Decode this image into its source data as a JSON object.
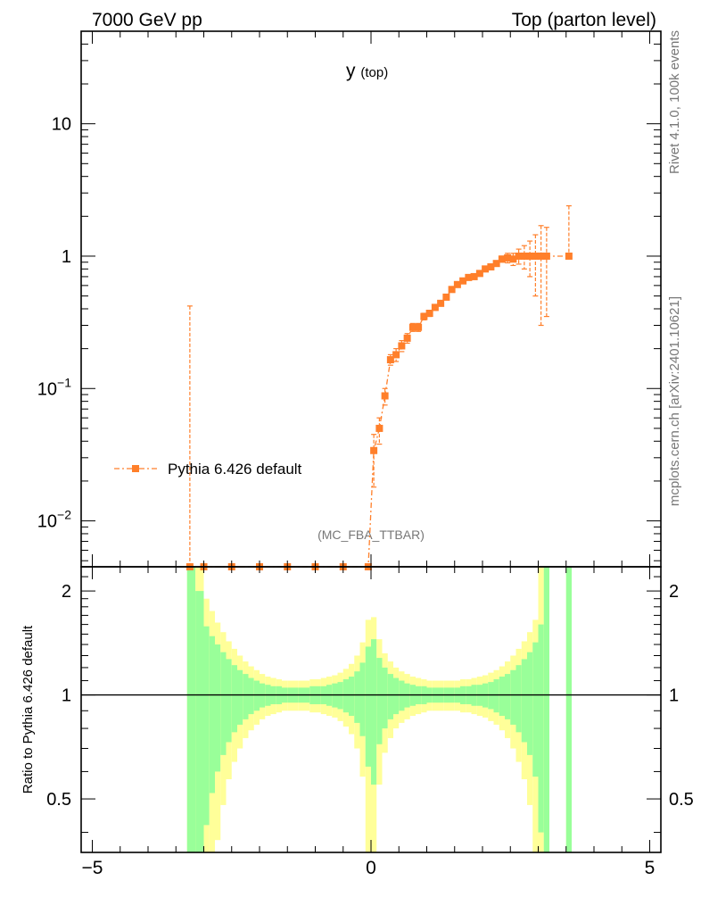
{
  "chart_data": {
    "type": "line",
    "header_left": "7000 GeV pp",
    "header_right": "Top (parton level)",
    "title_main": "y",
    "title_sub": "(top)",
    "side_label_top": "Rivet 4.1.0,  100k events",
    "side_label_bottom": "mcplots.cern.ch [arXiv:2401.10621]",
    "analysis_label": "(MC_FBA_TTBAR)",
    "ratio_ylabel": "Ratio to Pythia 6.426 default",
    "xlim": [
      -5.2,
      5.2
    ],
    "ylim_main": [
      0.0045,
      50
    ],
    "ylim_ratio": [
      0.35,
      2.35
    ],
    "x_ticks": [
      -5,
      0,
      5
    ],
    "x_tick_labels": [
      "−5",
      "0",
      "5"
    ],
    "main_y_ticks": [
      {
        "v": 10,
        "base": "10",
        "exp": ""
      },
      {
        "v": 1,
        "base": "1",
        "exp": ""
      },
      {
        "v": 0.1,
        "base": "10",
        "exp": "−1"
      },
      {
        "v": 0.01,
        "base": "10",
        "exp": "−2"
      }
    ],
    "ratio_y_ticks": [
      {
        "v": 2,
        "label": "2"
      },
      {
        "v": 1,
        "label": "1"
      },
      {
        "v": 0.5,
        "label": "0.5"
      }
    ],
    "series": [
      {
        "name": "Pythia 6.426 default",
        "color": "#ff7f2a",
        "points": [
          {
            "x": -3.25,
            "y": 0.0045,
            "up": 0.42
          },
          {
            "x": -3.0,
            "y": 0.0045
          },
          {
            "x": -2.5,
            "y": 0.0045
          },
          {
            "x": -2.0,
            "y": 0.0045
          },
          {
            "x": -1.5,
            "y": 0.0045
          },
          {
            "x": -1.0,
            "y": 0.0045
          },
          {
            "x": -0.5,
            "y": 0.0045
          },
          {
            "x": -0.05,
            "y": 0.0045
          },
          {
            "x": 0.05,
            "y": 0.034,
            "up": 0.045,
            "dn": 0.018
          },
          {
            "x": 0.15,
            "y": 0.05,
            "up": 0.06,
            "dn": 0.038
          },
          {
            "x": 0.25,
            "y": 0.088,
            "up": 0.1,
            "dn": 0.075
          },
          {
            "x": 0.35,
            "y": 0.165,
            "up": 0.18,
            "dn": 0.15
          },
          {
            "x": 0.45,
            "y": 0.18,
            "up": 0.2,
            "dn": 0.16
          },
          {
            "x": 0.55,
            "y": 0.21,
            "up": 0.23,
            "dn": 0.19
          },
          {
            "x": 0.65,
            "y": 0.24,
            "up": 0.26,
            "dn": 0.22
          },
          {
            "x": 0.75,
            "y": 0.29,
            "up": 0.31,
            "dn": 0.27
          },
          {
            "x": 0.85,
            "y": 0.29,
            "up": 0.31,
            "dn": 0.27
          },
          {
            "x": 0.95,
            "y": 0.35,
            "up": 0.37,
            "dn": 0.33
          },
          {
            "x": 1.05,
            "y": 0.37,
            "up": 0.39,
            "dn": 0.35
          },
          {
            "x": 1.15,
            "y": 0.41,
            "up": 0.43,
            "dn": 0.39
          },
          {
            "x": 1.25,
            "y": 0.44,
            "up": 0.46,
            "dn": 0.42
          },
          {
            "x": 1.35,
            "y": 0.49,
            "up": 0.51,
            "dn": 0.47
          },
          {
            "x": 1.45,
            "y": 0.56,
            "up": 0.58,
            "dn": 0.54
          },
          {
            "x": 1.55,
            "y": 0.61,
            "up": 0.63,
            "dn": 0.59
          },
          {
            "x": 1.65,
            "y": 0.65,
            "up": 0.67,
            "dn": 0.63
          },
          {
            "x": 1.75,
            "y": 0.69,
            "up": 0.71,
            "dn": 0.67
          },
          {
            "x": 1.85,
            "y": 0.7,
            "up": 0.72,
            "dn": 0.68
          },
          {
            "x": 1.95,
            "y": 0.74,
            "up": 0.76,
            "dn": 0.72
          },
          {
            "x": 2.05,
            "y": 0.8,
            "up": 0.83,
            "dn": 0.77
          },
          {
            "x": 2.15,
            "y": 0.83,
            "up": 0.86,
            "dn": 0.8
          },
          {
            "x": 2.25,
            "y": 0.88,
            "up": 0.92,
            "dn": 0.84
          },
          {
            "x": 2.35,
            "y": 0.95,
            "up": 1.0,
            "dn": 0.9
          },
          {
            "x": 2.45,
            "y": 0.97,
            "up": 1.05,
            "dn": 0.89
          },
          {
            "x": 2.55,
            "y": 0.95,
            "up": 1.05,
            "dn": 0.85
          },
          {
            "x": 2.65,
            "y": 1.0,
            "up": 1.13,
            "dn": 0.87
          },
          {
            "x": 2.75,
            "y": 1.0,
            "up": 1.2,
            "dn": 0.8
          },
          {
            "x": 2.85,
            "y": 1.0,
            "up": 1.3,
            "dn": 0.7
          },
          {
            "x": 2.95,
            "y": 1.0,
            "up": 1.45,
            "dn": 0.5
          },
          {
            "x": 3.05,
            "y": 1.0,
            "up": 1.7,
            "dn": 0.3
          },
          {
            "x": 3.15,
            "y": 1.0,
            "up": 1.65,
            "dn": 0.35
          },
          {
            "x": 3.55,
            "y": 1.0,
            "up": 2.4
          }
        ]
      }
    ],
    "ratio_band_bins": [
      {
        "x0": -3.3,
        "x1": -3.15,
        "inner": 1.35,
        "outer": 1.35
      },
      {
        "x0": -3.15,
        "x1": -3.0,
        "inner": 1.0,
        "outer": 1.35
      },
      {
        "x0": -3.0,
        "x1": -2.9,
        "inner": 0.58,
        "outer": 0.9
      },
      {
        "x0": -2.9,
        "x1": -2.8,
        "inner": 0.48,
        "outer": 0.75
      },
      {
        "x0": -2.8,
        "x1": -2.7,
        "inner": 0.4,
        "outer": 0.62
      },
      {
        "x0": -2.7,
        "x1": -2.6,
        "inner": 0.33,
        "outer": 0.52
      },
      {
        "x0": -2.6,
        "x1": -2.5,
        "inner": 0.27,
        "outer": 0.43
      },
      {
        "x0": -2.5,
        "x1": -2.4,
        "inner": 0.22,
        "outer": 0.36
      },
      {
        "x0": -2.4,
        "x1": -2.3,
        "inner": 0.18,
        "outer": 0.3
      },
      {
        "x0": -2.3,
        "x1": -2.2,
        "inner": 0.15,
        "outer": 0.25
      },
      {
        "x0": -2.2,
        "x1": -2.1,
        "inner": 0.12,
        "outer": 0.21
      },
      {
        "x0": -2.1,
        "x1": -2.0,
        "inner": 0.1,
        "outer": 0.18
      },
      {
        "x0": -2.0,
        "x1": -1.9,
        "inner": 0.08,
        "outer": 0.15
      },
      {
        "x0": -1.9,
        "x1": -1.8,
        "inner": 0.07,
        "outer": 0.13
      },
      {
        "x0": -1.8,
        "x1": -1.7,
        "inner": 0.06,
        "outer": 0.12
      },
      {
        "x0": -1.7,
        "x1": -1.6,
        "inner": 0.06,
        "outer": 0.11
      },
      {
        "x0": -1.6,
        "x1": -1.5,
        "inner": 0.05,
        "outer": 0.1
      },
      {
        "x0": -1.5,
        "x1": -1.4,
        "inner": 0.05,
        "outer": 0.1
      },
      {
        "x0": -1.4,
        "x1": -1.3,
        "inner": 0.05,
        "outer": 0.1
      },
      {
        "x0": -1.3,
        "x1": -1.2,
        "inner": 0.05,
        "outer": 0.1
      },
      {
        "x0": -1.2,
        "x1": -1.1,
        "inner": 0.05,
        "outer": 0.1
      },
      {
        "x0": -1.1,
        "x1": -1.0,
        "inner": 0.06,
        "outer": 0.11
      },
      {
        "x0": -1.0,
        "x1": -0.9,
        "inner": 0.06,
        "outer": 0.11
      },
      {
        "x0": -0.9,
        "x1": -0.8,
        "inner": 0.06,
        "outer": 0.12
      },
      {
        "x0": -0.8,
        "x1": -0.7,
        "inner": 0.07,
        "outer": 0.13
      },
      {
        "x0": -0.7,
        "x1": -0.6,
        "inner": 0.08,
        "outer": 0.14
      },
      {
        "x0": -0.6,
        "x1": -0.5,
        "inner": 0.09,
        "outer": 0.16
      },
      {
        "x0": -0.5,
        "x1": -0.4,
        "inner": 0.11,
        "outer": 0.19
      },
      {
        "x0": -0.4,
        "x1": -0.3,
        "inner": 0.13,
        "outer": 0.23
      },
      {
        "x0": -0.3,
        "x1": -0.2,
        "inner": 0.17,
        "outer": 0.3
      },
      {
        "x0": -0.2,
        "x1": -0.1,
        "inner": 0.24,
        "outer": 0.42
      },
      {
        "x0": -0.1,
        "x1": 0.0,
        "inner": 0.38,
        "outer": 0.65
      },
      {
        "x0": 0.0,
        "x1": 0.1,
        "inner": 0.45,
        "outer": 0.68
      },
      {
        "x0": 0.1,
        "x1": 0.2,
        "inner": 0.28,
        "outer": 0.45
      },
      {
        "x0": 0.2,
        "x1": 0.3,
        "inner": 0.2,
        "outer": 0.32
      },
      {
        "x0": 0.3,
        "x1": 0.4,
        "inner": 0.15,
        "outer": 0.25
      },
      {
        "x0": 0.4,
        "x1": 0.5,
        "inner": 0.12,
        "outer": 0.2
      },
      {
        "x0": 0.5,
        "x1": 0.6,
        "inner": 0.1,
        "outer": 0.17
      },
      {
        "x0": 0.6,
        "x1": 0.7,
        "inner": 0.08,
        "outer": 0.15
      },
      {
        "x0": 0.7,
        "x1": 0.8,
        "inner": 0.07,
        "outer": 0.13
      },
      {
        "x0": 0.8,
        "x1": 0.9,
        "inner": 0.06,
        "outer": 0.12
      },
      {
        "x0": 0.9,
        "x1": 1.0,
        "inner": 0.06,
        "outer": 0.11
      },
      {
        "x0": 1.0,
        "x1": 1.1,
        "inner": 0.05,
        "outer": 0.1
      },
      {
        "x0": 1.1,
        "x1": 1.2,
        "inner": 0.05,
        "outer": 0.1
      },
      {
        "x0": 1.2,
        "x1": 1.3,
        "inner": 0.05,
        "outer": 0.1
      },
      {
        "x0": 1.3,
        "x1": 1.4,
        "inner": 0.05,
        "outer": 0.1
      },
      {
        "x0": 1.4,
        "x1": 1.5,
        "inner": 0.05,
        "outer": 0.1
      },
      {
        "x0": 1.5,
        "x1": 1.6,
        "inner": 0.05,
        "outer": 0.1
      },
      {
        "x0": 1.6,
        "x1": 1.7,
        "inner": 0.06,
        "outer": 0.11
      },
      {
        "x0": 1.7,
        "x1": 1.8,
        "inner": 0.06,
        "outer": 0.11
      },
      {
        "x0": 1.8,
        "x1": 1.9,
        "inner": 0.07,
        "outer": 0.12
      },
      {
        "x0": 1.9,
        "x1": 2.0,
        "inner": 0.07,
        "outer": 0.13
      },
      {
        "x0": 2.0,
        "x1": 2.1,
        "inner": 0.08,
        "outer": 0.14
      },
      {
        "x0": 2.1,
        "x1": 2.2,
        "inner": 0.09,
        "outer": 0.16
      },
      {
        "x0": 2.2,
        "x1": 2.3,
        "inner": 0.11,
        "outer": 0.18
      },
      {
        "x0": 2.3,
        "x1": 2.4,
        "inner": 0.13,
        "outer": 0.21
      },
      {
        "x0": 2.4,
        "x1": 2.5,
        "inner": 0.15,
        "outer": 0.25
      },
      {
        "x0": 2.5,
        "x1": 2.6,
        "inner": 0.18,
        "outer": 0.3
      },
      {
        "x0": 2.6,
        "x1": 2.7,
        "inner": 0.22,
        "outer": 0.36
      },
      {
        "x0": 2.7,
        "x1": 2.8,
        "inner": 0.27,
        "outer": 0.43
      },
      {
        "x0": 2.8,
        "x1": 2.9,
        "inner": 0.33,
        "outer": 0.52
      },
      {
        "x0": 2.9,
        "x1": 3.0,
        "inner": 0.42,
        "outer": 0.65
      },
      {
        "x0": 3.0,
        "x1": 3.1,
        "inner": 0.6,
        "outer": 1.35
      },
      {
        "x0": 3.1,
        "x1": 3.2,
        "inner": 1.35,
        "outer": 1.35
      },
      {
        "x0": 3.5,
        "x1": 3.6,
        "inner": 1.35,
        "outer": 1.35
      }
    ],
    "colors": {
      "series": "#ff7f2a",
      "band_inner": "#99ff99",
      "band_outer": "#ffff99",
      "axis": "#000000",
      "side_text": "#777777"
    }
  }
}
